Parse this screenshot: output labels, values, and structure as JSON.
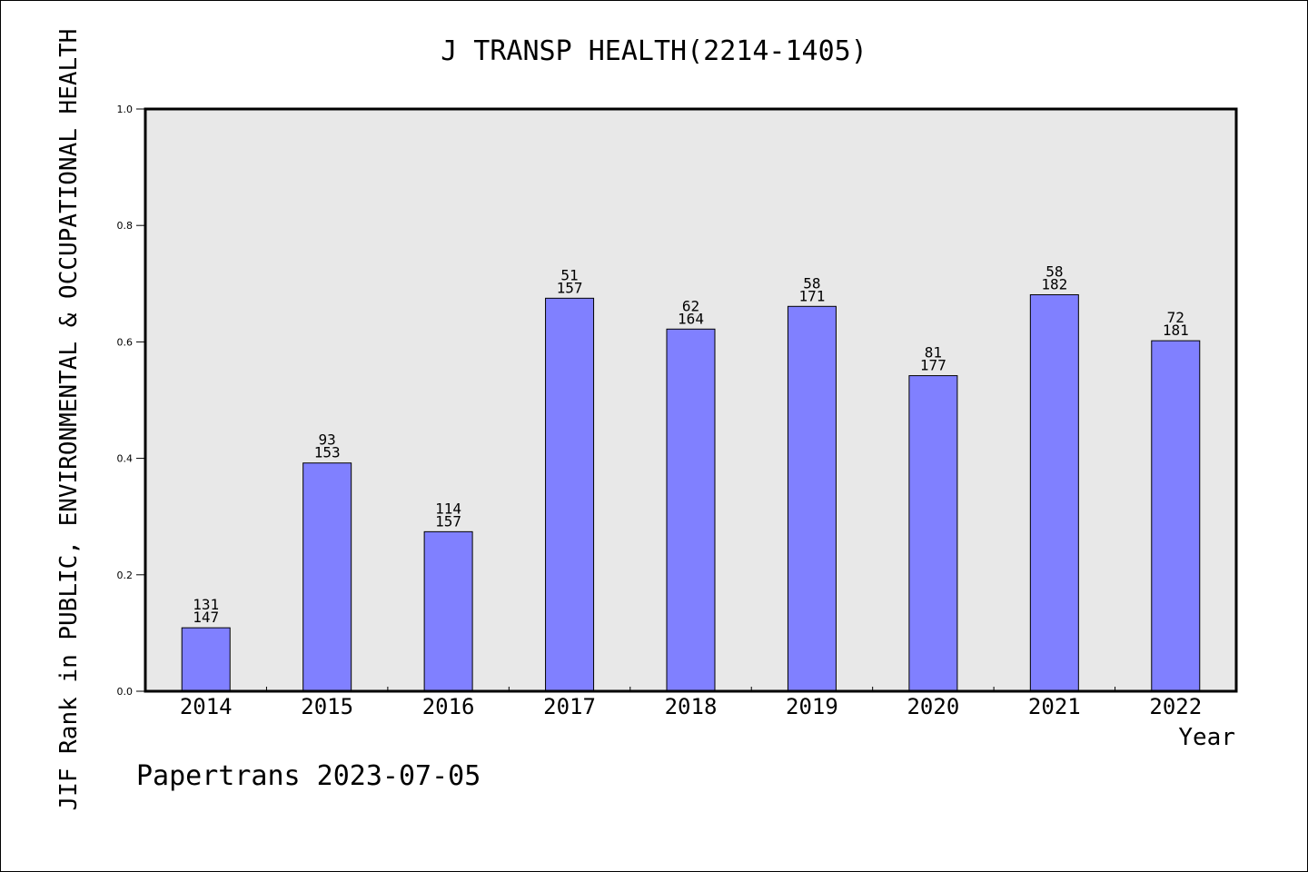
{
  "chart_data": {
    "type": "bar",
    "title": "J TRANSP HEALTH(2214-1405)",
    "xlabel": "Year",
    "ylabel": "JIF Rank in PUBLIC, ENVIRONMENTAL & OCCUPATIONAL HEALTH",
    "ylim": [
      0,
      1.0
    ],
    "yticks": [
      "0.0",
      "0.2",
      "0.4",
      "0.6",
      "0.8",
      "1.0"
    ],
    "categories": [
      "2014",
      "2015",
      "2016",
      "2017",
      "2018",
      "2019",
      "2020",
      "2021",
      "2022"
    ],
    "rank": [
      131,
      93,
      114,
      51,
      62,
      58,
      81,
      58,
      72
    ],
    "total": [
      147,
      153,
      157,
      157,
      164,
      171,
      177,
      182,
      181
    ],
    "values": [
      0.109,
      0.392,
      0.274,
      0.675,
      0.622,
      0.661,
      0.542,
      0.681,
      0.602
    ],
    "grid": false,
    "colors": {
      "bar": "#8080ff",
      "plot_bg": "#e8e8e8"
    }
  },
  "footer": "Papertrans 2023-07-05"
}
